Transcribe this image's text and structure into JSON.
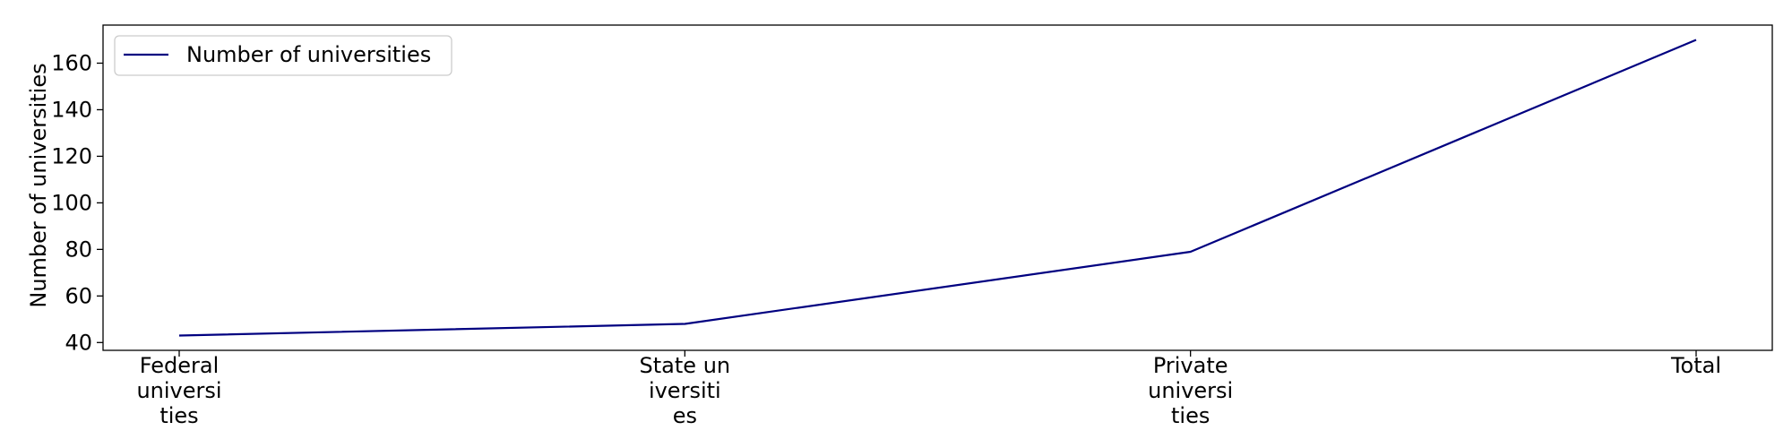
{
  "chart_data": {
    "type": "line",
    "categories": [
      [
        "Federal",
        "universi",
        "ties"
      ],
      [
        "State un",
        "iversiti",
        "es"
      ],
      [
        "Private",
        "universi",
        "ties"
      ],
      [
        "Total"
      ]
    ],
    "series": [
      {
        "name": "Number of universities",
        "values": [
          43,
          48,
          79,
          170
        ],
        "color": "#000080"
      }
    ],
    "ylabel": "Number of universities",
    "yticks": [
      40,
      60,
      80,
      100,
      120,
      140,
      160
    ],
    "ylim": [
      36.65,
      176.35
    ],
    "grid": false,
    "legend_position": "top-left"
  }
}
